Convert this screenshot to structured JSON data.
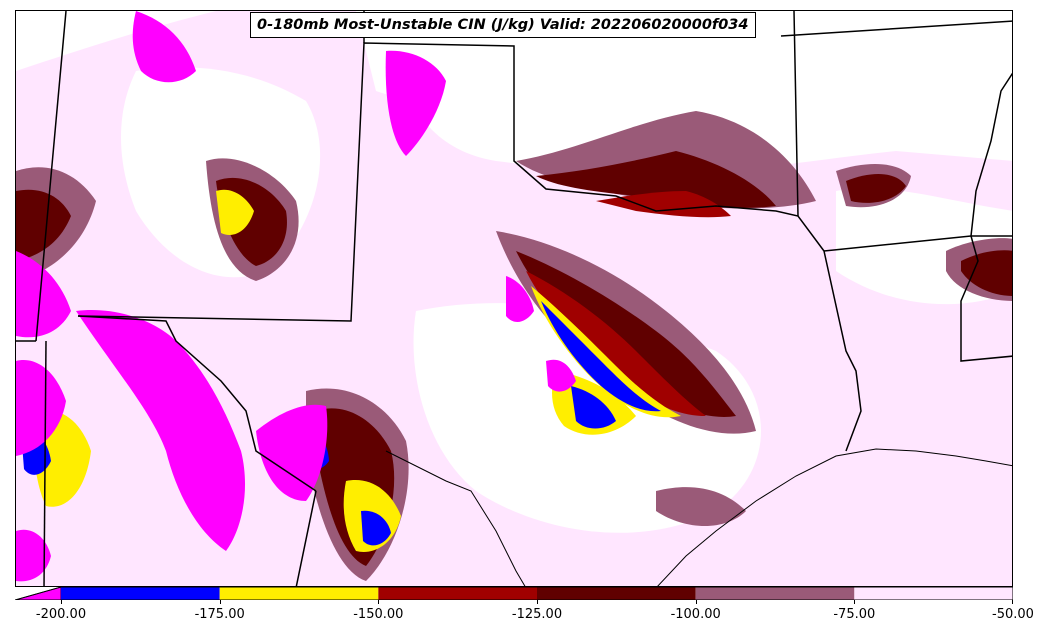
{
  "title": "0-180mb Most-Unstable CIN (J/kg) Valid: 202206020000f034",
  "colorbar": {
    "levels": [
      "-200.00",
      "-175.00",
      "-150.00",
      "-125.00",
      "-100.00",
      "-75.00",
      "-50.00"
    ],
    "colors": [
      "#ff00ff",
      "#0000ff",
      "#ffee00",
      "#a00000",
      "#600000",
      "#9a5a78",
      "#ffe6ff"
    ],
    "extend": "min"
  },
  "map": {
    "region": "Southern Plains / Texas",
    "background": "#ffffff",
    "fields": [
      "cin-contour-fill"
    ],
    "boundaries": [
      "state-borders",
      "coastline"
    ]
  }
}
